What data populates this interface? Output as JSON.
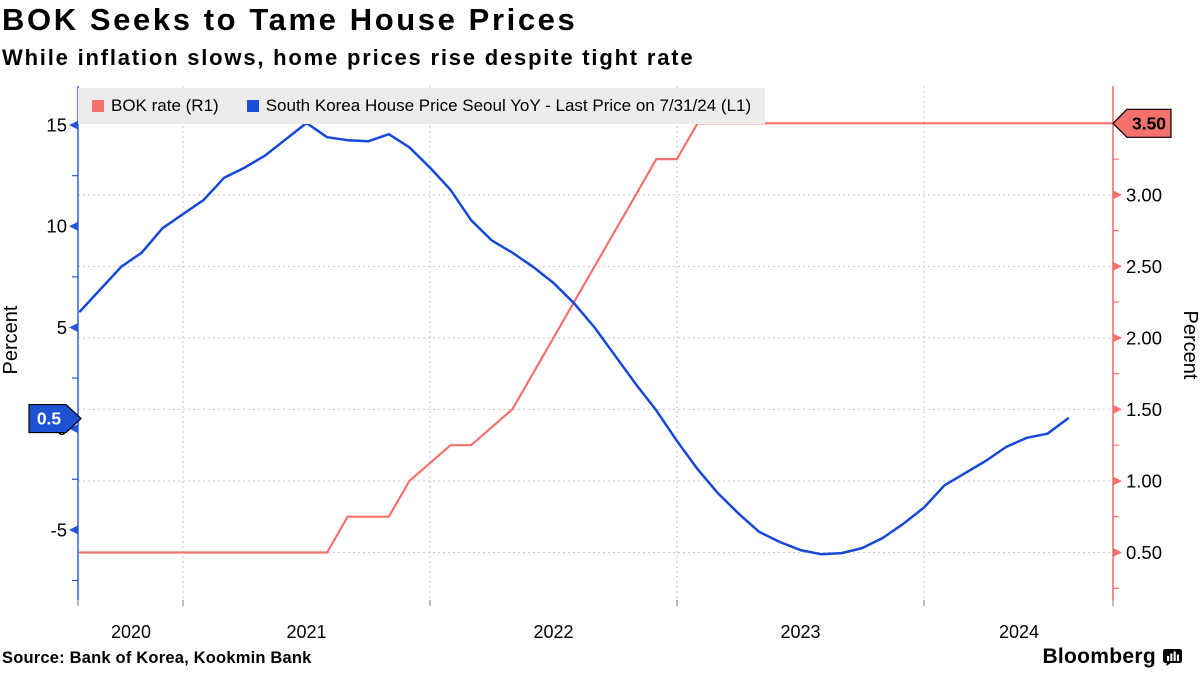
{
  "header": {
    "title": "BOK Seeks to Tame House Prices",
    "subtitle": "While inflation slows, home prices rise despite tight rate"
  },
  "legend": [
    {
      "label": "BOK rate (R1)",
      "color": "#f4716e"
    },
    {
      "label": "South Korea House Price Seoul YoY - Last Price on 7/31/24 (L1)",
      "color": "#1a4fd6"
    }
  ],
  "footer": {
    "source": "Source: Bank of Korea, Kookmin Bank",
    "brand": "Bloomberg",
    "brand_icon": "bloomberg-bars-icon"
  },
  "chart_data": {
    "type": "line",
    "title": "BOK Seeks to Tame House Prices",
    "frequency": "monthly",
    "date_start": "2020-07-31",
    "date_end": "2024-07-31",
    "x_tick_labels": [
      "2020",
      "2021",
      "2022",
      "2023",
      "2024"
    ],
    "grid": "dashed horizontal at right-axis ticks, dashed vertical at year starts",
    "legend_position": "top-left inside plot",
    "left_axis": {
      "label": "Percent",
      "ticks": [
        "15",
        "10",
        "5",
        "0",
        "-5"
      ],
      "tick_values": [
        15,
        10,
        5,
        0,
        -5
      ],
      "range": [
        -8.5,
        16.9
      ],
      "color": "#2257d9",
      "last_price_tag": "0.5"
    },
    "right_axis": {
      "label": "Percent",
      "ticks": [
        "3.00",
        "2.50",
        "2.00",
        "1.50",
        "1.00",
        "0.50"
      ],
      "tick_values": [
        3.0,
        2.5,
        2.0,
        1.5,
        1.0,
        0.5
      ],
      "range": [
        0.17,
        3.76
      ],
      "color": "#f4716e",
      "last_price_tag": "3.50"
    },
    "series": [
      {
        "name": "BOK rate (R1)",
        "axis": "right",
        "color": "#f4716e",
        "last_value": 3.5,
        "values": [
          0.5,
          0.5,
          0.5,
          0.5,
          0.5,
          0.5,
          0.5,
          0.5,
          0.5,
          0.5,
          0.5,
          0.5,
          0.5,
          0.75,
          0.75,
          0.75,
          1.0,
          1.125,
          1.25,
          1.25,
          1.375,
          1.5,
          1.75,
          2.0,
          2.25,
          2.5,
          2.75,
          3.0,
          3.25,
          3.25,
          3.5,
          3.5,
          3.5,
          3.5,
          3.5,
          3.5,
          3.5,
          3.5,
          3.5,
          3.5,
          3.5,
          3.5,
          3.5,
          3.5,
          3.5,
          3.5,
          3.5,
          3.5,
          3.5
        ]
      },
      {
        "name": "South Korea House Price Seoul YoY - Last Price on 7/31/24 (L1)",
        "axis": "left",
        "color": "#1a4fd6",
        "last_value": 0.5,
        "values": [
          5.8,
          6.9,
          8.0,
          8.7,
          9.9,
          10.6,
          11.3,
          12.4,
          12.9,
          13.5,
          14.3,
          15.1,
          14.4,
          14.25,
          14.2,
          14.55,
          13.9,
          12.9,
          11.8,
          10.3,
          9.3,
          8.7,
          8.0,
          7.2,
          6.2,
          5.0,
          3.6,
          2.2,
          0.9,
          -0.6,
          -2.0,
          -3.2,
          -4.2,
          -5.1,
          -5.6,
          -6.0,
          -6.2,
          -6.15,
          -5.9,
          -5.4,
          -4.7,
          -3.9,
          -2.8,
          -2.2,
          -1.6,
          -0.9,
          -0.45,
          -0.25,
          0.5
        ]
      }
    ]
  }
}
